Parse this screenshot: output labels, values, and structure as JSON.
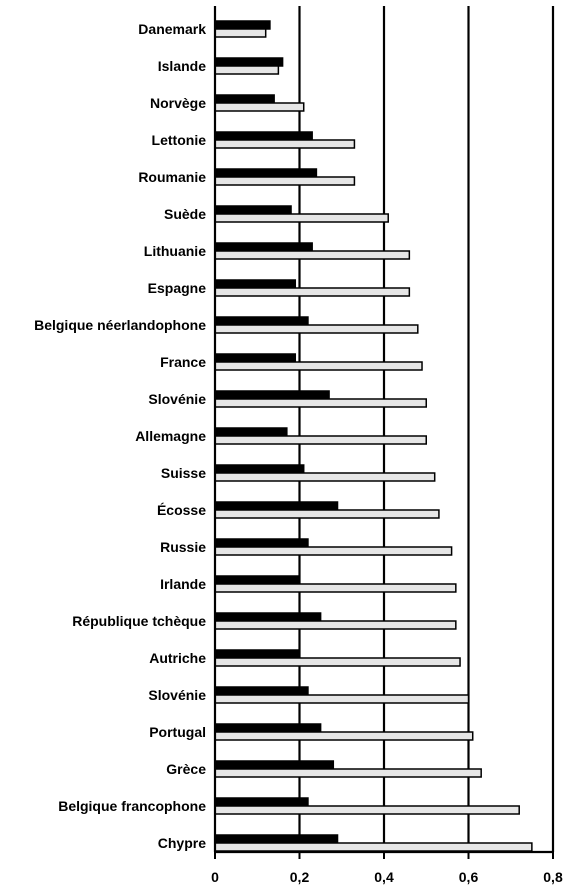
{
  "chart_data": {
    "type": "bar",
    "orientation": "horizontal",
    "title": "",
    "xlabel": "",
    "ylabel": "",
    "xlim": [
      0,
      0.8
    ],
    "xticks": [
      0,
      0.2,
      0.4,
      0.6,
      0.8
    ],
    "xtick_labels": [
      "0",
      "0,2",
      "0,4",
      "0,6",
      "0,8"
    ],
    "grid": "vertical lines at each major tick",
    "legend": "none",
    "colors": {
      "series_1": "#000000",
      "series_2": "#e6e6e6",
      "outline": "#000000"
    },
    "categories": [
      "Danemark",
      "Islande",
      "Norvège",
      "Lettonie",
      "Roumanie",
      "Suède",
      "Lithuanie",
      "Espagne",
      "Belgique néerlandophone",
      "France",
      "Slovénie",
      "Allemagne",
      "Suisse",
      "Écosse",
      "Russie",
      "Irlande",
      "République tchèque",
      "Autriche",
      "Slovénie",
      "Portugal",
      "Grèce",
      "Belgique francophone",
      "Chypre"
    ],
    "series": [
      {
        "values": [
          0.13,
          0.16,
          0.14,
          0.23,
          0.24,
          0.18,
          0.23,
          0.19,
          0.22,
          0.19,
          0.27,
          0.17,
          0.21,
          0.29,
          0.22,
          0.2,
          0.25,
          0.2,
          0.22,
          0.25,
          0.28,
          0.22,
          0.29
        ]
      },
      {
        "values": [
          0.12,
          0.15,
          0.21,
          0.33,
          0.33,
          0.41,
          0.46,
          0.46,
          0.48,
          0.49,
          0.5,
          0.5,
          0.52,
          0.53,
          0.56,
          0.57,
          0.57,
          0.58,
          0.6,
          0.61,
          0.63,
          0.72,
          0.75
        ]
      }
    ]
  }
}
